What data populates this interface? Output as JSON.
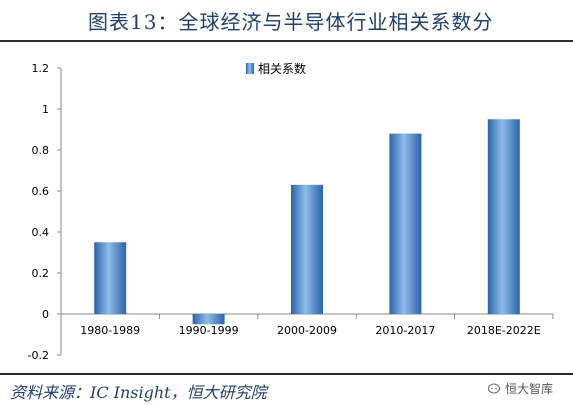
{
  "header": {
    "title": "图表13：全球经济与半导体行业相关系数分"
  },
  "footer": {
    "source": "资料来源：IC Insight，恒大研究院",
    "watermark": "恒大智库"
  },
  "chart_data": {
    "type": "bar",
    "categories": [
      "1980-1989",
      "1990-1999",
      "2000-2009",
      "2010-2017",
      "2018E-2022E"
    ],
    "series": [
      {
        "name": "相关系数",
        "values": [
          0.35,
          -0.05,
          0.63,
          0.88,
          0.95
        ]
      }
    ],
    "ylim": [
      -0.2,
      1.2
    ],
    "yticks": [
      "-0.2",
      "0",
      "0.2",
      "0.4",
      "0.6",
      "0.8",
      "1",
      "1.2"
    ],
    "grid": false,
    "legend": "top-center",
    "colors": {
      "bar": "#4f8fd4",
      "bar_light": "#8fbce9",
      "bar_dark": "#2a64a8",
      "axis": "#888888"
    }
  }
}
